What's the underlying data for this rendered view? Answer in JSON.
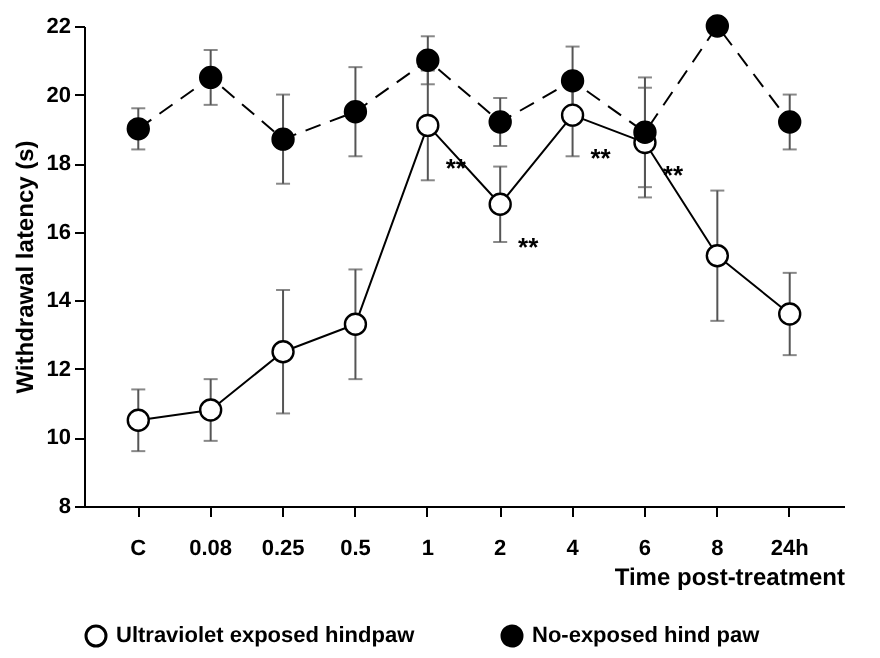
{
  "chart_data": {
    "type": "line",
    "xlabel": "Time post-treatment",
    "ylabel": "Withdrawal latency (s)",
    "categories": [
      "C",
      "0.08",
      "0.25",
      "0.5",
      "1",
      "2",
      "4",
      "6",
      "8",
      "24h"
    ],
    "series": [
      {
        "name": "Ultraviolet exposed hindpaw",
        "color": "#000000",
        "line_style": "solid",
        "values": [
          10.5,
          10.8,
          12.5,
          13.3,
          19.1,
          16.8,
          19.4,
          18.6,
          15.3,
          13.6
        ],
        "errors": [
          0.9,
          0.9,
          1.8,
          1.6,
          1.6,
          1.1,
          1.2,
          1.6,
          1.9,
          1.2
        ]
      },
      {
        "name": "No-exposed hind paw",
        "color": "#000000",
        "line_style": "dashed",
        "values": [
          19.0,
          20.5,
          18.7,
          19.5,
          21.0,
          19.2,
          20.4,
          18.9,
          22.0,
          19.2
        ],
        "errors": [
          0.6,
          0.8,
          1.3,
          1.3,
          0.7,
          0.7,
          1.0,
          1.6,
          null,
          0.8
        ]
      }
    ],
    "ylim": [
      8,
      22
    ],
    "yticks": [
      8,
      10,
      12,
      14,
      16,
      18,
      20,
      22
    ],
    "grid": false,
    "legend": "bottom",
    "marker": "circle",
    "annotations": [
      {
        "text": "**",
        "x": "1",
        "y": 19.1
      },
      {
        "text": "**",
        "x": "2",
        "y": 16.8
      },
      {
        "text": "**",
        "x": "4",
        "y": 19.4
      },
      {
        "text": "**",
        "x": "6",
        "y": 18.9
      }
    ]
  }
}
